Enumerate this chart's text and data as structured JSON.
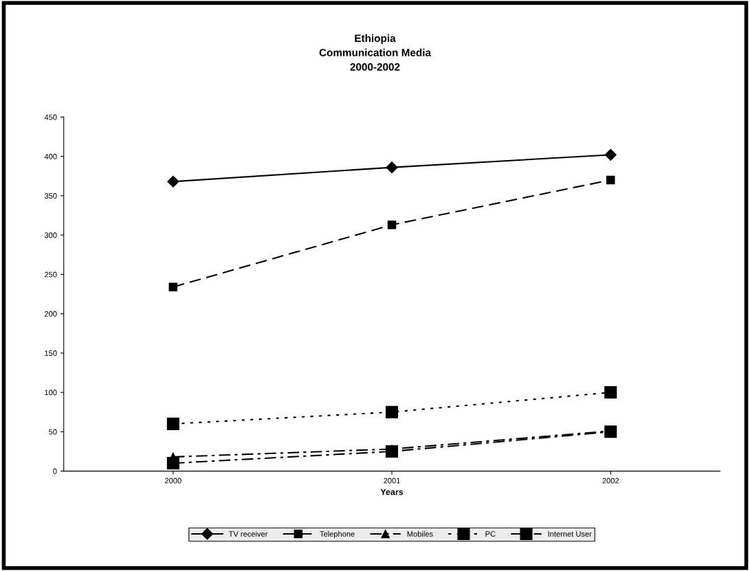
{
  "chart_data": {
    "type": "line",
    "title": "Ethiopia\nCommunication Media\n2000-2002",
    "xlabel": "Years",
    "categories": [
      "2000",
      "2001",
      "2002"
    ],
    "series": [
      {
        "name": "TV receiver",
        "color": "#000000",
        "marker": "diamond",
        "line_style": "solid",
        "values": [
          368,
          386,
          402
        ]
      },
      {
        "name": "Telephone",
        "color": "#000000",
        "marker": "square",
        "line_style": "dashed",
        "values": [
          234,
          313,
          370
        ]
      },
      {
        "name": "Mobiles",
        "color": "#000000",
        "marker": "triangle",
        "line_style": "dashdot",
        "values": [
          18,
          28,
          51
        ]
      },
      {
        "name": "PC",
        "color": "#000000",
        "marker": "square",
        "line_style": "dotted",
        "values": [
          60,
          75,
          100
        ]
      },
      {
        "name": "Internet User",
        "color": "#000000",
        "marker": "square",
        "line_style": "dashdot",
        "values": [
          10,
          25,
          50
        ]
      }
    ],
    "ylim": [
      0,
      450
    ],
    "yticks": [
      0,
      50,
      100,
      150,
      200,
      250,
      300,
      350,
      400,
      450
    ],
    "grid": false,
    "legend": "bottom"
  }
}
